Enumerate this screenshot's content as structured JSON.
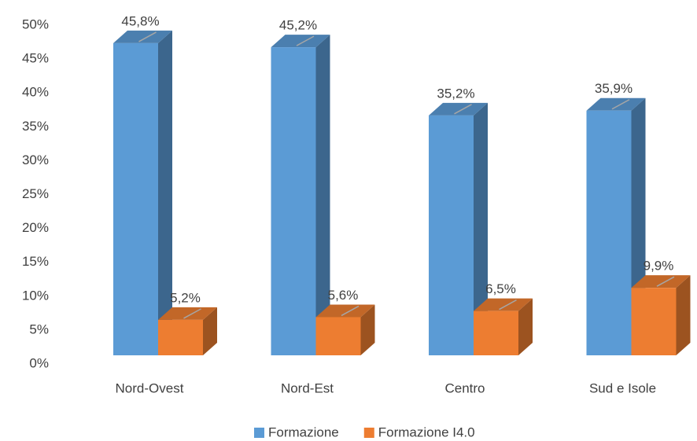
{
  "chart_data": {
    "type": "bar3d",
    "categories": [
      "Nord-Ovest",
      "Nord-Est",
      "Centro",
      "Sud e Isole"
    ],
    "series": [
      {
        "name": "Formazione",
        "color": "#5b9bd5",
        "values": [
          45.8,
          45.2,
          35.2,
          35.9
        ],
        "value_labels": [
          "45,8%",
          "45,2%",
          "35,2%",
          "35,9%"
        ]
      },
      {
        "name": "Formazione I4.0",
        "color": "#ed7d31",
        "values": [
          5.2,
          5.6,
          6.5,
          9.9
        ],
        "value_labels": [
          "5,2%",
          "5,6%",
          "6,5%",
          "9,9%"
        ]
      }
    ],
    "ylim": [
      0,
      50
    ],
    "yticks": [
      {
        "value": 0,
        "label": "0%"
      },
      {
        "value": 5,
        "label": "5%"
      },
      {
        "value": 10,
        "label": "10%"
      },
      {
        "value": 15,
        "label": "15%"
      },
      {
        "value": 20,
        "label": "20%"
      },
      {
        "value": 25,
        "label": "25%"
      },
      {
        "value": 30,
        "label": "30%"
      },
      {
        "value": 35,
        "label": "35%"
      },
      {
        "value": 40,
        "label": "40%"
      },
      {
        "value": 45,
        "label": "45%"
      },
      {
        "value": 50,
        "label": "50%"
      }
    ],
    "grid": false,
    "legend": "bottom"
  }
}
